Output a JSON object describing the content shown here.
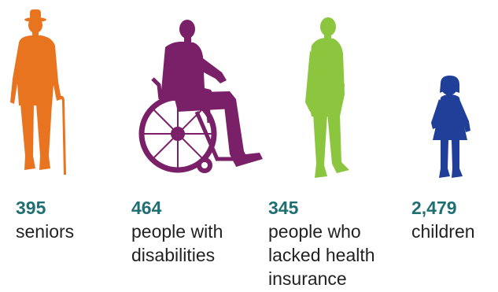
{
  "colors": {
    "value_text": "#1f6f73",
    "label_text": "#222222",
    "seniors": "#e8741f",
    "disabilities": "#7a2068",
    "uninsured": "#8cc63f",
    "children": "#1f3f99"
  },
  "stats": [
    {
      "value": "395",
      "label": "seniors",
      "icon": "senior-with-cane-icon"
    },
    {
      "value": "464",
      "label": "people with\ndisabilities",
      "icon": "wheelchair-user-icon"
    },
    {
      "value": "345",
      "label": "people who\nlacked health\ninsurance",
      "icon": "standing-man-icon"
    },
    {
      "value": "2,479",
      "label": "children",
      "icon": "child-icon"
    }
  ]
}
